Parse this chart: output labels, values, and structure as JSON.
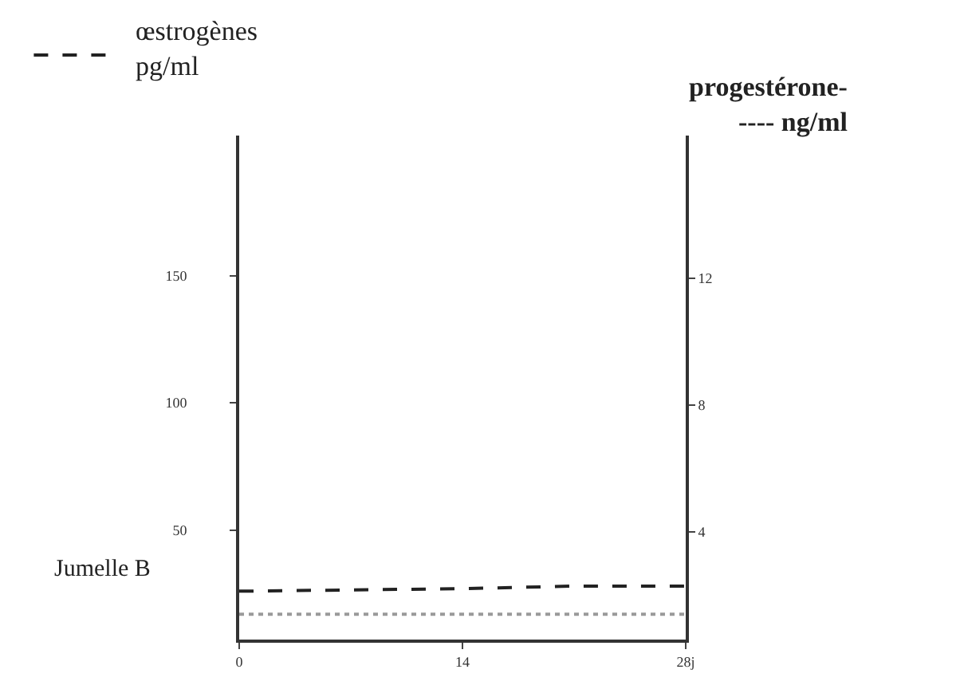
{
  "chart_data": {
    "type": "line",
    "ylabel": "œstrogènes\npg/ml",
    "y2label": "progestérone-\n---- ng/ml",
    "x": [
      0,
      7,
      14,
      21,
      28
    ],
    "series": [
      {
        "color": "#222222",
        "values": [
          26,
          26.5,
          27,
          28,
          28
        ],
        "line_style": "dashed"
      },
      {
        "color": "#9a9a9a",
        "values": [
          1.4,
          1.4,
          1.4,
          1.4,
          1.4
        ],
        "line_style": "dotted",
        "axis": "y2"
      }
    ],
    "xlim": [
      0,
      28
    ],
    "xticks": [
      0,
      14,
      {
        "value": 28,
        "label": "28j"
      }
    ],
    "ylim": [
      7,
      205
    ],
    "yticks": [
      50,
      100,
      150
    ],
    "y2lim": [
      0.6,
      16.5
    ],
    "y2ticks": [
      4,
      8,
      12
    ],
    "annotations": [
      "Jumelle B"
    ],
    "marker": "none"
  }
}
